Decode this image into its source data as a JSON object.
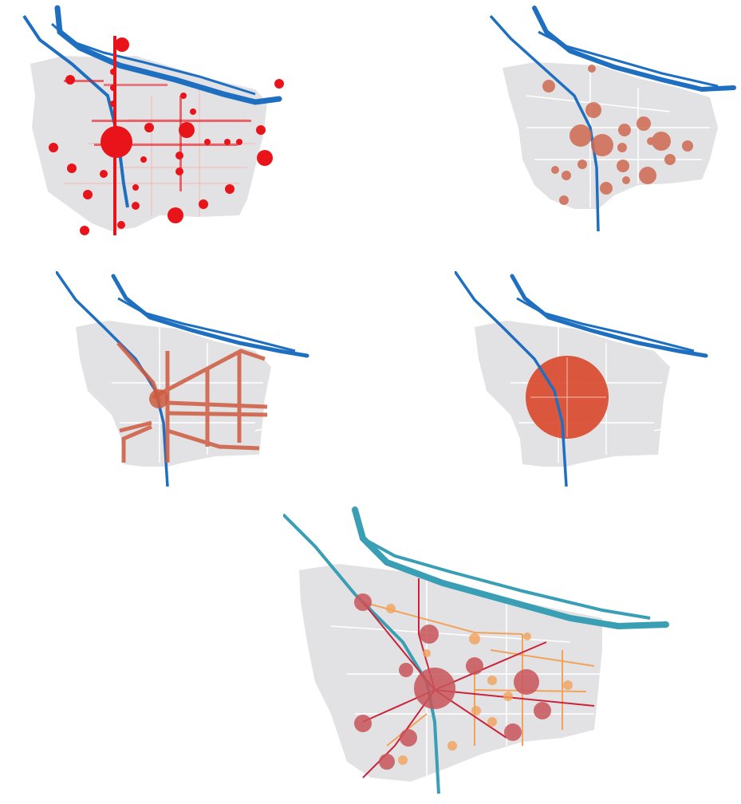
{
  "figure": {
    "panels": [
      {
        "id": "panel-1",
        "style": "many small dense red dots along corridors"
      },
      {
        "id": "panel-2",
        "style": "scattered medium terracotta circles"
      },
      {
        "id": "panel-3",
        "style": "corridor network of thick terracotta lines"
      },
      {
        "id": "panel-4",
        "style": "single large central circle"
      },
      {
        "id": "panel-5",
        "style": "combined hub-and-corridor network, teal river"
      }
    ]
  },
  "colors": {
    "land": "#e2e2e4",
    "road": "#ffffff",
    "river_blue": "#1f6fc1",
    "river_teal": "#3a9fb4",
    "dot_red": "#e8141a",
    "circle_terracotta": "#cf6a52",
    "corridor": "#cd5a40",
    "big_circle": "#d94a2e",
    "network_red": "#c9243a",
    "network_orange": "#f2a25a",
    "hub": "#c9555a"
  }
}
